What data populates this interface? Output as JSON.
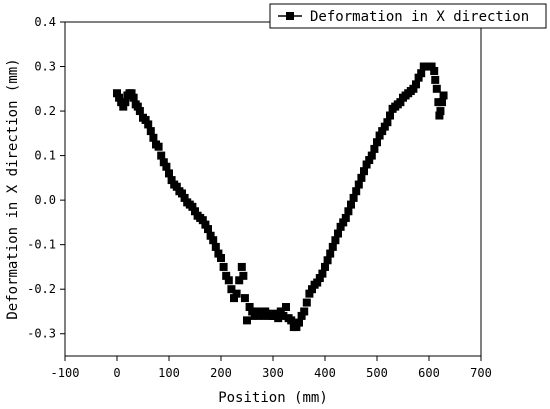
{
  "chart_data": {
    "type": "scatter",
    "xlabel": "Position (mm)",
    "ylabel": "Deformation in X direction (mm)",
    "xlim": [
      -100,
      700
    ],
    "ylim": [
      -0.35,
      0.4
    ],
    "xticks": [
      -100,
      0,
      100,
      200,
      300,
      400,
      500,
      600,
      700
    ],
    "xtick_labels": [
      "-100",
      "0",
      "100",
      "200",
      "300",
      "400",
      "500",
      "600",
      "700"
    ],
    "yticks": [
      -0.3,
      -0.2,
      -0.1,
      0.0,
      0.1,
      0.2,
      0.3,
      0.4
    ],
    "ytick_labels": [
      "-0.3",
      "-0.2",
      "-0.1",
      "0.0",
      "0.1",
      "0.2",
      "0.3",
      "0.4"
    ],
    "legend_position": "top-right",
    "grid": false,
    "marker": "square",
    "color": "#000000",
    "series": [
      {
        "name": "Deformation in X direction",
        "points": [
          [
            0,
            0.24
          ],
          [
            4,
            0.23
          ],
          [
            8,
            0.22
          ],
          [
            12,
            0.21
          ],
          [
            16,
            0.22
          ],
          [
            20,
            0.235
          ],
          [
            24,
            0.24
          ],
          [
            28,
            0.24
          ],
          [
            32,
            0.23
          ],
          [
            36,
            0.215
          ],
          [
            40,
            0.21
          ],
          [
            44,
            0.2
          ],
          [
            50,
            0.185
          ],
          [
            55,
            0.18
          ],
          [
            60,
            0.17
          ],
          [
            65,
            0.155
          ],
          [
            70,
            0.14
          ],
          [
            75,
            0.125
          ],
          [
            80,
            0.12
          ],
          [
            85,
            0.1
          ],
          [
            90,
            0.085
          ],
          [
            95,
            0.075
          ],
          [
            100,
            0.06
          ],
          [
            105,
            0.045
          ],
          [
            110,
            0.035
          ],
          [
            115,
            0.03
          ],
          [
            120,
            0.02
          ],
          [
            125,
            0.015
          ],
          [
            130,
            0.005
          ],
          [
            135,
            -0.005
          ],
          [
            140,
            -0.01
          ],
          [
            145,
            -0.015
          ],
          [
            150,
            -0.025
          ],
          [
            155,
            -0.035
          ],
          [
            160,
            -0.04
          ],
          [
            165,
            -0.045
          ],
          [
            170,
            -0.055
          ],
          [
            175,
            -0.065
          ],
          [
            180,
            -0.08
          ],
          [
            185,
            -0.09
          ],
          [
            190,
            -0.105
          ],
          [
            195,
            -0.12
          ],
          [
            200,
            -0.13
          ],
          [
            205,
            -0.15
          ],
          [
            210,
            -0.17
          ],
          [
            215,
            -0.18
          ],
          [
            220,
            -0.2
          ],
          [
            225,
            -0.22
          ],
          [
            230,
            -0.21
          ],
          [
            235,
            -0.18
          ],
          [
            240,
            -0.15
          ],
          [
            243,
            -0.17
          ],
          [
            246,
            -0.22
          ],
          [
            250,
            -0.27
          ],
          [
            255,
            -0.24
          ],
          [
            260,
            -0.25
          ],
          [
            265,
            -0.26
          ],
          [
            270,
            -0.25
          ],
          [
            275,
            -0.255
          ],
          [
            280,
            -0.26
          ],
          [
            285,
            -0.25
          ],
          [
            290,
            -0.255
          ],
          [
            295,
            -0.26
          ],
          [
            300,
            -0.26
          ],
          [
            305,
            -0.255
          ],
          [
            310,
            -0.265
          ],
          [
            315,
            -0.25
          ],
          [
            320,
            -0.26
          ],
          [
            325,
            -0.24
          ],
          [
            330,
            -0.265
          ],
          [
            335,
            -0.27
          ],
          [
            340,
            -0.285
          ],
          [
            345,
            -0.285
          ],
          [
            350,
            -0.275
          ],
          [
            355,
            -0.26
          ],
          [
            360,
            -0.25
          ],
          [
            365,
            -0.23
          ],
          [
            370,
            -0.21
          ],
          [
            375,
            -0.2
          ],
          [
            380,
            -0.19
          ],
          [
            385,
            -0.185
          ],
          [
            390,
            -0.175
          ],
          [
            395,
            -0.165
          ],
          [
            400,
            -0.15
          ],
          [
            405,
            -0.135
          ],
          [
            410,
            -0.12
          ],
          [
            415,
            -0.105
          ],
          [
            420,
            -0.09
          ],
          [
            425,
            -0.075
          ],
          [
            430,
            -0.06
          ],
          [
            435,
            -0.05
          ],
          [
            440,
            -0.04
          ],
          [
            445,
            -0.025
          ],
          [
            450,
            -0.01
          ],
          [
            455,
            0.005
          ],
          [
            460,
            0.02
          ],
          [
            465,
            0.035
          ],
          [
            470,
            0.05
          ],
          [
            475,
            0.065
          ],
          [
            480,
            0.08
          ],
          [
            485,
            0.09
          ],
          [
            490,
            0.1
          ],
          [
            495,
            0.115
          ],
          [
            500,
            0.13
          ],
          [
            505,
            0.145
          ],
          [
            510,
            0.155
          ],
          [
            515,
            0.165
          ],
          [
            520,
            0.175
          ],
          [
            525,
            0.19
          ],
          [
            530,
            0.205
          ],
          [
            535,
            0.21
          ],
          [
            540,
            0.215
          ],
          [
            545,
            0.22
          ],
          [
            550,
            0.23
          ],
          [
            555,
            0.235
          ],
          [
            560,
            0.24
          ],
          [
            565,
            0.245
          ],
          [
            570,
            0.25
          ],
          [
            575,
            0.26
          ],
          [
            580,
            0.275
          ],
          [
            585,
            0.285
          ],
          [
            590,
            0.3
          ],
          [
            595,
            0.3
          ],
          [
            600,
            0.3
          ],
          [
            605,
            0.3
          ],
          [
            610,
            0.29
          ],
          [
            612,
            0.27
          ],
          [
            615,
            0.25
          ],
          [
            618,
            0.22
          ],
          [
            620,
            0.19
          ],
          [
            622,
            0.2
          ],
          [
            625,
            0.22
          ],
          [
            628,
            0.235
          ]
        ]
      }
    ]
  }
}
